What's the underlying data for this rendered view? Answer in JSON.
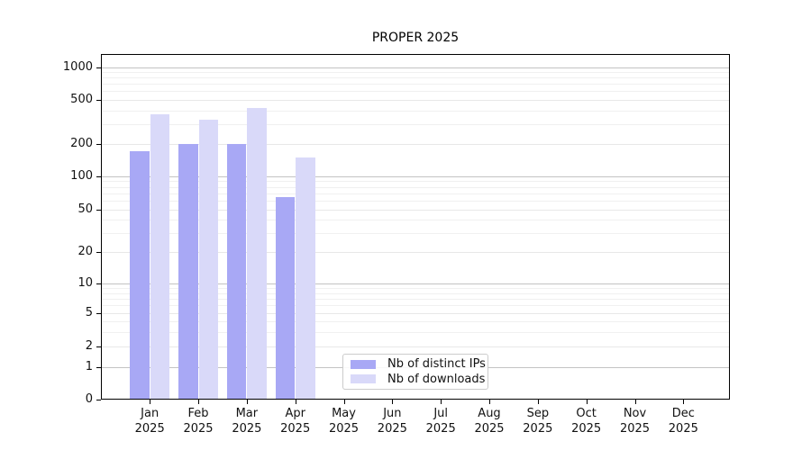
{
  "chart_data": {
    "type": "bar",
    "title": "PROPER 2025",
    "categories": [
      "Jan",
      "Feb",
      "Mar",
      "Apr",
      "May",
      "Jun",
      "Jul",
      "Aug",
      "Sep",
      "Oct",
      "Nov",
      "Dec"
    ],
    "category_year": "2025",
    "series": [
      {
        "name": "Nb of distinct IPs",
        "color": "#a8a8f5",
        "values": [
          170,
          200,
          200,
          65,
          null,
          null,
          null,
          null,
          null,
          null,
          null,
          null
        ]
      },
      {
        "name": "Nb of downloads",
        "color": "#d9d9f9",
        "values": [
          370,
          330,
          420,
          150,
          null,
          null,
          null,
          null,
          null,
          null,
          null,
          null
        ]
      }
    ],
    "y_axis": {
      "scale": "asinh",
      "ticks": [
        0,
        1,
        2,
        5,
        10,
        20,
        50,
        100,
        200,
        500,
        1000
      ],
      "major_gridlines": [
        1,
        10,
        100,
        1000
      ],
      "minor_gridlines": [
        3,
        4,
        6,
        7,
        8,
        9,
        30,
        40,
        60,
        70,
        80,
        90,
        300,
        400,
        600,
        700,
        800,
        900
      ],
      "range": [
        0,
        1000
      ]
    },
    "grid": true,
    "legend_position": "lower-center",
    "colors": {
      "axis": "#000000",
      "major_grid": "#c3c3c3",
      "minor_grid": "#f0f0f0"
    }
  }
}
